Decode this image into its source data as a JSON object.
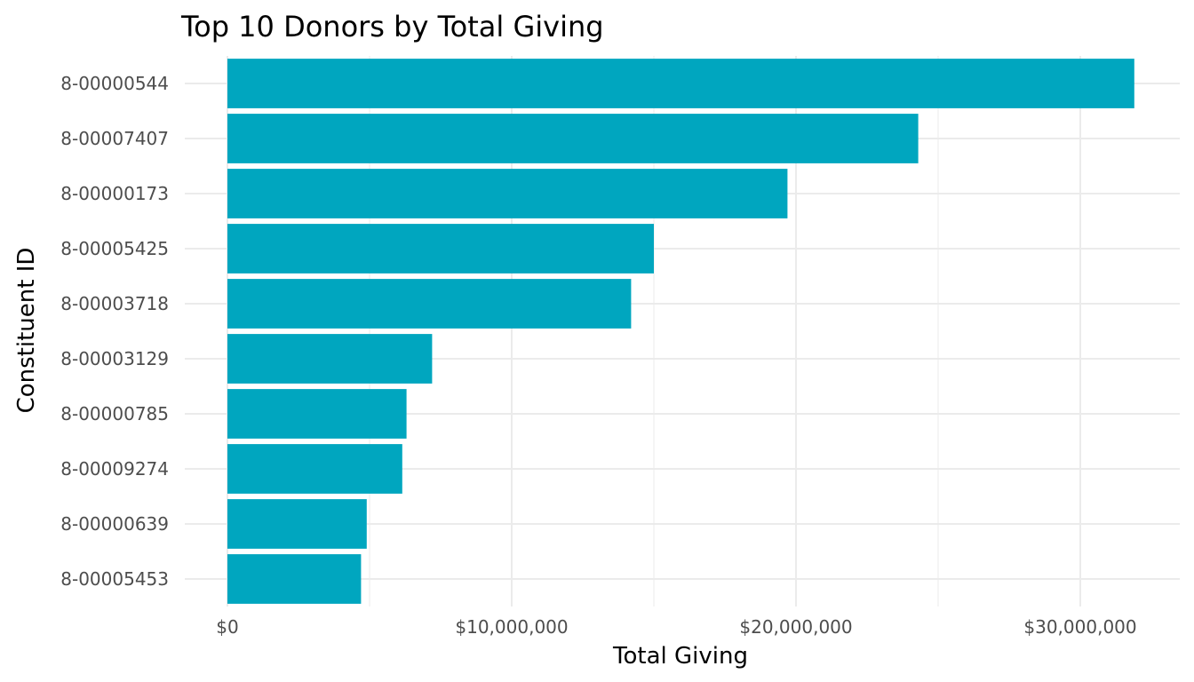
{
  "colors": {
    "bar": "#00a6bf",
    "grid": "#ebebeb",
    "tick_text": "#4d4d4d",
    "text": "#000000",
    "background": "#ffffff"
  },
  "chart_data": {
    "type": "bar",
    "orientation": "horizontal",
    "title": "Top 10 Donors by Total Giving",
    "xlabel": "Total Giving",
    "ylabel": "Constituent ID",
    "categories": [
      "8-00000544",
      "8-00007407",
      "8-00000173",
      "8-00005425",
      "8-00003718",
      "8-00003129",
      "8-00000785",
      "8-00009274",
      "8-00000639",
      "8-00005453"
    ],
    "values": [
      31900000,
      24300000,
      19700000,
      15000000,
      14200000,
      7200000,
      6300000,
      6150000,
      4900000,
      4700000
    ],
    "xlim": [
      -1500000,
      33500000
    ],
    "x_ticks": [
      0,
      10000000,
      20000000,
      30000000
    ],
    "x_tick_labels": [
      "$0",
      "$10,000,000",
      "$20,000,000",
      "$30,000,000"
    ],
    "grid": true,
    "legend": "none"
  }
}
